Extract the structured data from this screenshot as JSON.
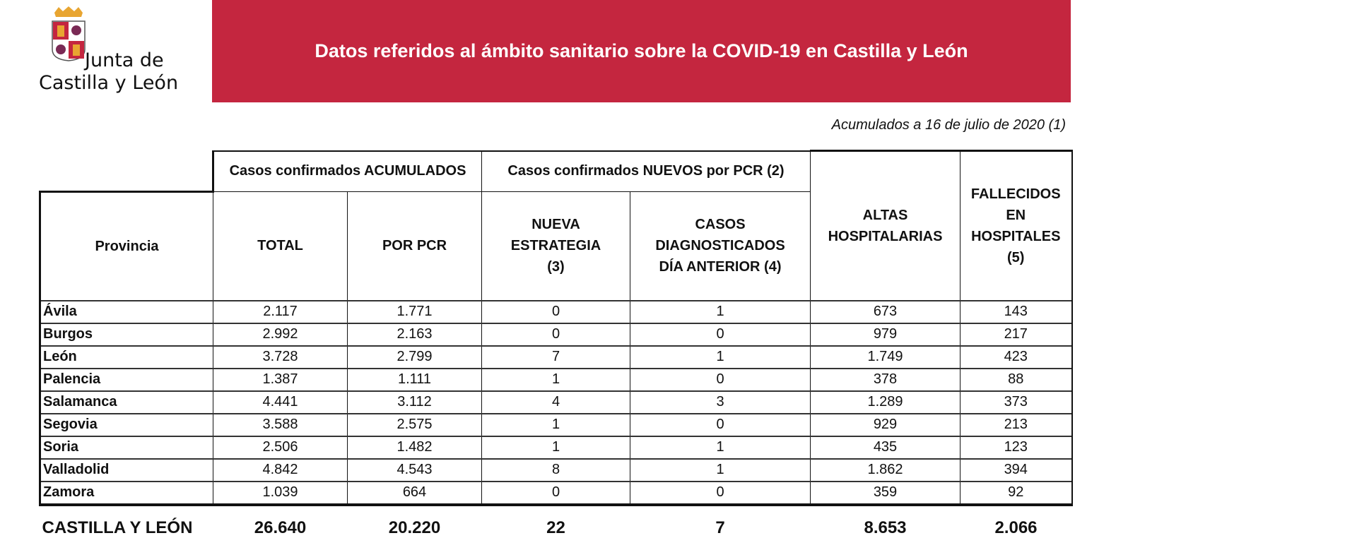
{
  "logo": {
    "line1": "Junta de",
    "line2": "Castilla y León"
  },
  "header": {
    "title": "Datos referidos al ámbito sanitario sobre la COVID-19 en Castilla y León"
  },
  "subtitle": "Acumulados a 16 de julio de 2020 (1)",
  "table": {
    "group_headers": {
      "acumulados": "Casos confirmados ACUMULADOS",
      "nuevos": "Casos confirmados NUEVOS por PCR (2)"
    },
    "columns": [
      "Provincia",
      "TOTAL",
      "POR PCR",
      "NUEVA ESTRATEGIA (3)",
      "CASOS DIAGNOSTICADOS DÍA ANTERIOR (4)",
      "ALTAS HOSPITALARIAS",
      "FALLECIDOS EN HOSPITALES (5)"
    ],
    "rows": [
      [
        "Ávila",
        "2.117",
        "1.771",
        "0",
        "1",
        "673",
        "143"
      ],
      [
        "Burgos",
        "2.992",
        "2.163",
        "0",
        "0",
        "979",
        "217"
      ],
      [
        "León",
        "3.728",
        "2.799",
        "7",
        "1",
        "1.749",
        "423"
      ],
      [
        "Palencia",
        "1.387",
        "1.111",
        "1",
        "0",
        "378",
        "88"
      ],
      [
        "Salamanca",
        "4.441",
        "3.112",
        "4",
        "3",
        "1.289",
        "373"
      ],
      [
        "Segovia",
        "3.588",
        "2.575",
        "1",
        "0",
        "929",
        "213"
      ],
      [
        "Soria",
        "2.506",
        "1.482",
        "1",
        "1",
        "435",
        "123"
      ],
      [
        "Valladolid",
        "4.842",
        "4.543",
        "8",
        "1",
        "1.862",
        "394"
      ],
      [
        "Zamora",
        "1.039",
        "664",
        "0",
        "0",
        "359",
        "92"
      ]
    ],
    "total": [
      "CASTILLA Y LEÓN",
      "26.640",
      "20.220",
      "22",
      "7",
      "8.653",
      "2.066"
    ]
  },
  "colors": {
    "banner": "#c4263f",
    "text": "#111111"
  }
}
